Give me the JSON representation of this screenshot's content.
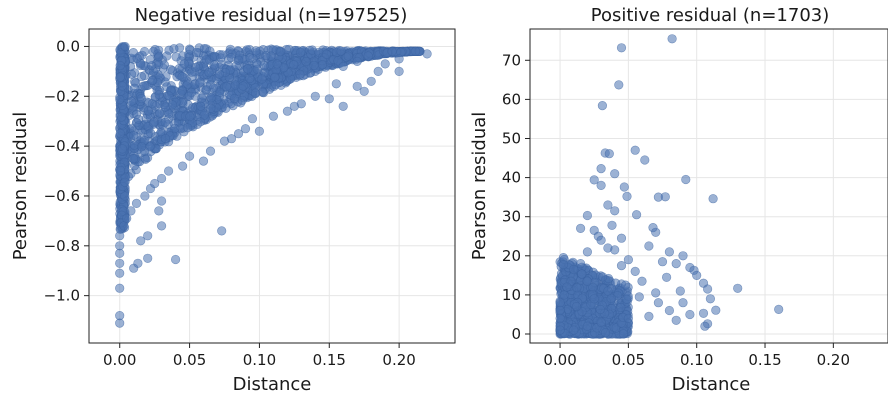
{
  "figure": {
    "layout": "1x2 subplots",
    "marker_color": "#4a72b0"
  },
  "chart_data": [
    {
      "type": "scatter",
      "title": "Negative residual (n=197525)",
      "xlabel": "Distance",
      "ylabel": "Pearson residual",
      "xlim": [
        -0.022,
        0.24
      ],
      "ylim": [
        -1.19,
        0.07
      ],
      "xticks": [
        0.0,
        0.05,
        0.1,
        0.15,
        0.2
      ],
      "xtick_labels": [
        "0.00",
        "0.05",
        "0.10",
        "0.15",
        "0.20"
      ],
      "yticks": [
        0.0,
        -0.2,
        -0.4,
        -0.6,
        -0.8,
        -1.0
      ],
      "ytick_labels": [
        "0.0",
        "−0.2",
        "−0.4",
        "−0.6",
        "−0.8",
        "−1.0"
      ],
      "grid": true,
      "legend": "none",
      "color": "#4a72b0",
      "series": [
        {
          "envelope_upper": [
            [
              0.0,
              0.0
            ],
            [
              0.22,
              -0.02
            ]
          ],
          "envelope_lower": [
            [
              0.0,
              -0.62
            ],
            [
              0.01,
              -0.52
            ],
            [
              0.02,
              -0.45
            ],
            [
              0.03,
              -0.4
            ],
            [
              0.05,
              -0.33
            ],
            [
              0.07,
              -0.27
            ],
            [
              0.09,
              -0.22
            ],
            [
              0.11,
              -0.17
            ],
            [
              0.13,
              -0.12
            ],
            [
              0.15,
              -0.08
            ],
            [
              0.17,
              -0.05
            ],
            [
              0.19,
              -0.03
            ],
            [
              0.21,
              -0.02
            ]
          ],
          "points": [
            [
              0.0,
              -1.11
            ],
            [
              0.0,
              -1.08
            ],
            [
              0.0,
              -0.97
            ],
            [
              0.0,
              -0.91
            ],
            [
              0.0,
              -0.87
            ],
            [
              0.0,
              -0.83
            ],
            [
              0.0,
              -0.8
            ],
            [
              0.0,
              -0.76
            ],
            [
              0.003,
              -0.72
            ],
            [
              0.005,
              -0.69
            ],
            [
              0.008,
              -0.66
            ],
            [
              0.012,
              -0.63
            ],
            [
              0.01,
              -0.89
            ],
            [
              0.013,
              -0.87
            ],
            [
              0.02,
              -0.85
            ],
            [
              0.015,
              -0.78
            ],
            [
              0.02,
              -0.76
            ],
            [
              0.03,
              -0.72
            ],
            [
              0.018,
              -0.6
            ],
            [
              0.022,
              -0.57
            ],
            [
              0.028,
              -0.66
            ],
            [
              0.03,
              -0.62
            ],
            [
              0.04,
              -0.855
            ],
            [
              0.073,
              -0.74
            ],
            [
              0.025,
              -0.55
            ],
            [
              0.03,
              -0.53
            ],
            [
              0.035,
              -0.5
            ],
            [
              0.045,
              -0.48
            ],
            [
              0.05,
              -0.44
            ],
            [
              0.06,
              -0.46
            ],
            [
              0.065,
              -0.42
            ],
            [
              0.075,
              -0.38
            ],
            [
              0.08,
              -0.37
            ],
            [
              0.085,
              -0.35
            ],
            [
              0.09,
              -0.33
            ],
            [
              0.1,
              -0.34
            ],
            [
              0.095,
              -0.29
            ],
            [
              0.11,
              -0.28
            ],
            [
              0.12,
              -0.26
            ],
            [
              0.125,
              -0.24
            ],
            [
              0.13,
              -0.23
            ],
            [
              0.14,
              -0.2
            ],
            [
              0.15,
              -0.21
            ],
            [
              0.16,
              -0.24
            ],
            [
              0.155,
              -0.15
            ],
            [
              0.17,
              -0.16
            ],
            [
              0.175,
              -0.18
            ],
            [
              0.18,
              -0.14
            ],
            [
              0.185,
              -0.1
            ],
            [
              0.19,
              -0.07
            ],
            [
              0.2,
              -0.05
            ],
            [
              0.2,
              -0.1
            ],
            [
              0.22,
              -0.03
            ],
            [
              0.195,
              -0.02
            ],
            [
              0.17,
              -0.06
            ],
            [
              0.16,
              -0.08
            ]
          ]
        }
      ]
    },
    {
      "type": "scatter",
      "title": "Positive residual (n=1703)",
      "xlabel": "Distance",
      "ylabel": "Pearson residual",
      "xlim": [
        -0.022,
        0.24
      ],
      "ylim": [
        -2.3,
        78.0
      ],
      "xticks": [
        0.0,
        0.05,
        0.1,
        0.15,
        0.2
      ],
      "xtick_labels": [
        "0.00",
        "0.05",
        "0.10",
        "0.15",
        "0.20"
      ],
      "yticks": [
        0,
        10,
        20,
        30,
        40,
        50,
        60,
        70
      ],
      "ytick_labels": [
        "0",
        "10",
        "20",
        "30",
        "40",
        "50",
        "60",
        "70"
      ],
      "grid": true,
      "legend": "none",
      "color": "#4a72b0",
      "series": [
        {
          "points": [
            [
              0.082,
              75.5
            ],
            [
              0.045,
              73.2
            ],
            [
              0.043,
              63.7
            ],
            [
              0.031,
              58.4
            ],
            [
              0.055,
              47.0
            ],
            [
              0.033,
              46.3
            ],
            [
              0.036,
              46.1
            ],
            [
              0.062,
              44.5
            ],
            [
              0.03,
              42.3
            ],
            [
              0.04,
              41.0
            ],
            [
              0.092,
              39.5
            ],
            [
              0.025,
              39.4
            ],
            [
              0.03,
              38.0
            ],
            [
              0.047,
              37.6
            ],
            [
              0.049,
              35.2
            ],
            [
              0.072,
              35.0
            ],
            [
              0.077,
              35.1
            ],
            [
              0.112,
              34.6
            ],
            [
              0.035,
              33.0
            ],
            [
              0.04,
              31.5
            ],
            [
              0.056,
              30.5
            ],
            [
              0.02,
              30.3
            ],
            [
              0.015,
              27.0
            ],
            [
              0.025,
              26.5
            ],
            [
              0.028,
              25.0
            ],
            [
              0.038,
              27.8
            ],
            [
              0.068,
              27.2
            ],
            [
              0.07,
              26.0
            ],
            [
              0.045,
              24.5
            ],
            [
              0.065,
              22.5
            ],
            [
              0.08,
              21.0
            ],
            [
              0.09,
              20.0
            ],
            [
              0.075,
              18.5
            ],
            [
              0.085,
              18.0
            ],
            [
              0.095,
              17.0
            ],
            [
              0.098,
              16.3
            ],
            [
              0.1,
              15.0
            ],
            [
              0.105,
              13.0
            ],
            [
              0.108,
              11.5
            ],
            [
              0.13,
              11.7
            ],
            [
              0.11,
              9.0
            ],
            [
              0.114,
              6.1
            ],
            [
              0.105,
              5.3
            ],
            [
              0.108,
              2.6
            ],
            [
              0.106,
              2.0
            ],
            [
              0.16,
              6.3
            ],
            [
              0.09,
              8.0
            ],
            [
              0.08,
              6.0
            ],
            [
              0.07,
              10.5
            ],
            [
              0.06,
              13.5
            ],
            [
              0.055,
              16.0
            ],
            [
              0.05,
              19.0
            ],
            [
              0.045,
              17.5
            ],
            [
              0.04,
              21.5
            ],
            [
              0.035,
              22.0
            ],
            [
              0.03,
              24.0
            ],
            [
              0.02,
              21.0
            ],
            [
              0.015,
              18.0
            ],
            [
              0.01,
              16.5
            ],
            [
              0.008,
              13.5
            ],
            [
              0.005,
              12.0
            ],
            [
              0.003,
              10.0
            ],
            [
              0.0,
              8.0
            ],
            [
              0.0,
              6.0
            ],
            [
              0.0,
              4.0
            ],
            [
              0.0,
              2.0
            ],
            [
              0.0,
              1.0
            ],
            [
              0.01,
              1.0
            ],
            [
              0.02,
              2.0
            ],
            [
              0.03,
              3.0
            ],
            [
              0.05,
              4.0
            ],
            [
              0.065,
              4.5
            ],
            [
              0.085,
              3.5
            ],
            [
              0.095,
              5.0
            ],
            [
              0.012,
              7.0
            ],
            [
              0.025,
              9.0
            ],
            [
              0.035,
              11.0
            ],
            [
              0.048,
              12.5
            ],
            [
              0.058,
              9.5
            ],
            [
              0.072,
              8.0
            ],
            [
              0.088,
              11.0
            ],
            [
              0.078,
              14.5
            ]
          ],
          "dense_core": {
            "x_range": [
              0.0,
              0.05
            ],
            "y_range": [
              0.0,
              20.0
            ]
          }
        }
      ]
    }
  ]
}
